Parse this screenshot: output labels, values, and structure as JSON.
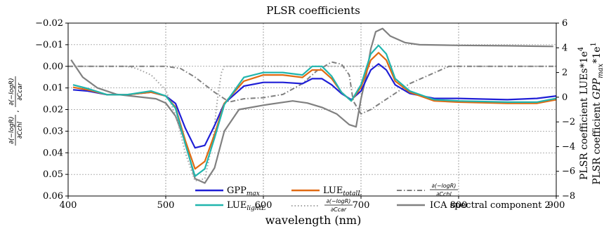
{
  "chart_data": {
    "type": "line",
    "title": "PLSR coefficients",
    "xlabel": "wavelength (nm)",
    "xlim": [
      400,
      900
    ],
    "x_ticks": [
      "400",
      "500",
      "600",
      "700",
      "800",
      "900"
    ],
    "x_tick_values": [
      400,
      500,
      600,
      700,
      800,
      900
    ],
    "y_left": {
      "label_parts": {
        "num": "∂(−logR)",
        "den1": "∂Cchl",
        "den2": "∂Ccar",
        "sep": ","
      },
      "ylim": [
        0.06,
        -0.02
      ],
      "inverted": true,
      "tick_values": [
        -0.02,
        -0.01,
        0.0,
        0.01,
        0.02,
        0.03,
        0.04,
        0.05,
        0.06
      ],
      "ticks": [
        "−0.02",
        "−0.01",
        "0.00",
        "0.01",
        "0.02",
        "0.03",
        "0.04",
        "0.05",
        "0.06"
      ]
    },
    "y_right": {
      "label1": "PLSR coefficient LUEs*1e",
      "label1_exp": "4",
      "label2_pre": "PLSR coefficient ",
      "label2_main": "GPP",
      "label2_sub": "max",
      "label2_post": "*1e",
      "label2_exp": "1",
      "ylim": [
        -8,
        6
      ],
      "tick_values": [
        -8,
        -6,
        -4,
        -2,
        0,
        2,
        4,
        6
      ],
      "ticks": [
        "−8",
        "−6",
        "−4",
        "−2",
        "0",
        "2",
        "4",
        "6"
      ]
    },
    "grid": true,
    "legend_position": "bottom-center",
    "series": [
      {
        "name": "GPP",
        "name_sub": "max",
        "axis": "right",
        "color": "#1f1fd6",
        "dash": "solid",
        "points": [
          [
            405,
            0.6
          ],
          [
            420,
            0.5
          ],
          [
            440,
            0.2
          ],
          [
            460,
            0.2
          ],
          [
            485,
            0.4
          ],
          [
            500,
            0.1
          ],
          [
            510,
            -0.5
          ],
          [
            520,
            -2.5
          ],
          [
            530,
            -4.1
          ],
          [
            540,
            -3.9
          ],
          [
            550,
            -2.3
          ],
          [
            560,
            -0.5
          ],
          [
            580,
            0.9
          ],
          [
            600,
            1.2
          ],
          [
            620,
            1.2
          ],
          [
            640,
            1.1
          ],
          [
            650,
            1.5
          ],
          [
            660,
            1.5
          ],
          [
            670,
            1.0
          ],
          [
            680,
            0.3
          ],
          [
            690,
            -0.2
          ],
          [
            700,
            0.5
          ],
          [
            710,
            2.2
          ],
          [
            718,
            2.7
          ],
          [
            726,
            2.2
          ],
          [
            735,
            1.0
          ],
          [
            750,
            0.3
          ],
          [
            775,
            -0.1
          ],
          [
            800,
            -0.1
          ],
          [
            850,
            -0.2
          ],
          [
            880,
            -0.1
          ],
          [
            900,
            0.1
          ]
        ]
      },
      {
        "name": "LUE",
        "name_sub": "totalL",
        "axis": "right",
        "color": "#e06a12",
        "dash": "solid",
        "points": [
          [
            405,
            0.8
          ],
          [
            420,
            0.6
          ],
          [
            440,
            0.2
          ],
          [
            460,
            0.2
          ],
          [
            485,
            0.4
          ],
          [
            500,
            0.1
          ],
          [
            510,
            -0.8
          ],
          [
            520,
            -3.5
          ],
          [
            530,
            -5.8
          ],
          [
            540,
            -5.2
          ],
          [
            550,
            -3.0
          ],
          [
            560,
            -0.5
          ],
          [
            580,
            1.3
          ],
          [
            600,
            1.8
          ],
          [
            620,
            1.8
          ],
          [
            640,
            1.6
          ],
          [
            650,
            2.2
          ],
          [
            660,
            2.2
          ],
          [
            670,
            1.5
          ],
          [
            680,
            0.4
          ],
          [
            690,
            -0.3
          ],
          [
            700,
            0.8
          ],
          [
            710,
            3.0
          ],
          [
            718,
            3.6
          ],
          [
            726,
            3.0
          ],
          [
            735,
            1.3
          ],
          [
            750,
            0.4
          ],
          [
            775,
            -0.3
          ],
          [
            800,
            -0.4
          ],
          [
            850,
            -0.5
          ],
          [
            880,
            -0.5
          ],
          [
            900,
            -0.2
          ]
        ]
      },
      {
        "name": "LUE",
        "name_sub": "lightL",
        "axis": "right",
        "color": "#20b5ad",
        "dash": "solid",
        "points": [
          [
            405,
            1.0
          ],
          [
            420,
            0.7
          ],
          [
            440,
            0.2
          ],
          [
            460,
            0.2
          ],
          [
            485,
            0.5
          ],
          [
            500,
            0.1
          ],
          [
            510,
            -0.9
          ],
          [
            520,
            -3.8
          ],
          [
            530,
            -6.4
          ],
          [
            540,
            -5.8
          ],
          [
            550,
            -3.3
          ],
          [
            560,
            -0.6
          ],
          [
            580,
            1.6
          ],
          [
            600,
            2.0
          ],
          [
            620,
            2.0
          ],
          [
            640,
            1.8
          ],
          [
            650,
            2.5
          ],
          [
            660,
            2.5
          ],
          [
            670,
            1.7
          ],
          [
            680,
            0.4
          ],
          [
            690,
            -0.3
          ],
          [
            700,
            1.0
          ],
          [
            710,
            3.5
          ],
          [
            718,
            4.2
          ],
          [
            726,
            3.5
          ],
          [
            735,
            1.5
          ],
          [
            750,
            0.5
          ],
          [
            775,
            -0.2
          ],
          [
            800,
            -0.3
          ],
          [
            850,
            -0.4
          ],
          [
            880,
            -0.4
          ],
          [
            900,
            -0.1
          ]
        ]
      },
      {
        "name": "∂(−logR)/∂Cchl",
        "axis": "left",
        "color": "#808080",
        "dash": "dashdot",
        "points": [
          [
            400,
            0.0
          ],
          [
            450,
            0.0
          ],
          [
            480,
            0.0
          ],
          [
            500,
            0.0
          ],
          [
            515,
            0.001
          ],
          [
            530,
            0.005
          ],
          [
            550,
            0.012
          ],
          [
            565,
            0.0165
          ],
          [
            580,
            0.015
          ],
          [
            600,
            0.0145
          ],
          [
            620,
            0.013
          ],
          [
            640,
            0.008
          ],
          [
            655,
            0.002
          ],
          [
            670,
            -0.002
          ],
          [
            680,
            -0.001
          ],
          [
            688,
            0.004
          ],
          [
            692,
            0.016
          ],
          [
            700,
            0.022
          ],
          [
            710,
            0.02
          ],
          [
            730,
            0.014
          ],
          [
            750,
            0.008
          ],
          [
            775,
            0.003
          ],
          [
            790,
            0.0
          ],
          [
            810,
            0.0
          ],
          [
            900,
            0.0
          ]
        ]
      },
      {
        "name": "∂(−logR)/∂Ccar",
        "axis": "left",
        "color": "#a0a0a0",
        "dash": "dotted",
        "points": [
          [
            400,
            0.0
          ],
          [
            460,
            0.0
          ],
          [
            470,
            0.001
          ],
          [
            485,
            0.004
          ],
          [
            500,
            0.011
          ],
          [
            512,
            0.025
          ],
          [
            520,
            0.04
          ],
          [
            530,
            0.053
          ],
          [
            540,
            0.052
          ],
          [
            548,
            0.035
          ],
          [
            553,
            0.015
          ],
          [
            557,
            0.003
          ],
          [
            560,
            0.0
          ],
          [
            600,
            0.0
          ],
          [
            650,
            0.0
          ],
          [
            700,
            0.0
          ],
          [
            800,
            0.0
          ],
          [
            900,
            0.0
          ]
        ]
      },
      {
        "name": "ICA spectral component 2",
        "axis": "left",
        "color": "#808080",
        "dash": "solid",
        "points": [
          [
            403,
            -0.003
          ],
          [
            415,
            0.005
          ],
          [
            430,
            0.01
          ],
          [
            450,
            0.013
          ],
          [
            470,
            0.014
          ],
          [
            490,
            0.015
          ],
          [
            500,
            0.017
          ],
          [
            510,
            0.023
          ],
          [
            520,
            0.035
          ],
          [
            530,
            0.052
          ],
          [
            540,
            0.054
          ],
          [
            550,
            0.047
          ],
          [
            560,
            0.03
          ],
          [
            575,
            0.02
          ],
          [
            600,
            0.018
          ],
          [
            630,
            0.016
          ],
          [
            645,
            0.017
          ],
          [
            660,
            0.019
          ],
          [
            675,
            0.022
          ],
          [
            688,
            0.027
          ],
          [
            695,
            0.028
          ],
          [
            700,
            0.015
          ],
          [
            705,
            0.005
          ],
          [
            710,
            -0.008
          ],
          [
            715,
            -0.016
          ],
          [
            722,
            -0.0175
          ],
          [
            730,
            -0.014
          ],
          [
            745,
            -0.011
          ],
          [
            760,
            -0.01
          ],
          [
            800,
            -0.0097
          ],
          [
            850,
            -0.0095
          ],
          [
            880,
            -0.0093
          ],
          [
            897,
            -0.0092
          ]
        ]
      }
    ]
  }
}
